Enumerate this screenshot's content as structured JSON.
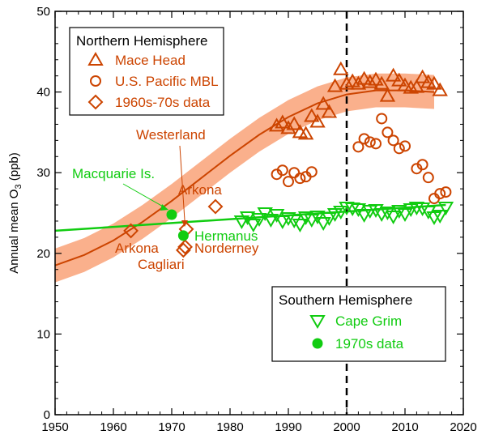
{
  "chart_data": {
    "type": "scatter",
    "xlabel": "",
    "ylabel_main": "Annual mean O",
    "ylabel_sub": "3",
    "ylabel_unit": " (ppb)",
    "xlim": [
      1950,
      2020
    ],
    "ylim": [
      0,
      50
    ],
    "xticks": [
      1950,
      1960,
      1970,
      1980,
      1990,
      2000,
      2010,
      2020
    ],
    "yticks": [
      0,
      10,
      20,
      30,
      40,
      50
    ],
    "vline_x": 2000,
    "colors": {
      "nh": "#cc4400",
      "nh_band": "#f9a77f",
      "sh": "#11cc11"
    },
    "legend_nh": {
      "title": "Northern Hemisphere",
      "items": [
        "Mace Head",
        "U.S. Pacific MBL",
        "1960s-70s data"
      ]
    },
    "legend_sh": {
      "title": "Southern Hemisphere",
      "items": [
        "Cape Grim",
        "1970s data"
      ]
    },
    "series": [
      {
        "name": "Mace Head",
        "marker": "triangle-up",
        "x": [
          1988,
          1989,
          1990,
          1991,
          1992,
          1993,
          1994,
          1995,
          1996,
          1997,
          1998,
          1999,
          2000,
          2001,
          2002,
          2003,
          2004,
          2005,
          2006,
          2007,
          2008,
          2009,
          2010,
          2011,
          2012,
          2013,
          2014,
          2015,
          2016
        ],
        "y": [
          35.8,
          36.2,
          35.5,
          36.0,
          35.0,
          34.8,
          37.0,
          36.3,
          38.5,
          37.5,
          40.7,
          42.8,
          41.0,
          41.3,
          41.0,
          41.6,
          41.2,
          41.5,
          41.0,
          39.5,
          42.0,
          41.4,
          40.8,
          40.5,
          40.6,
          41.8,
          41.2,
          41.0,
          40.2
        ]
      },
      {
        "name": "U.S. Pacific MBL",
        "marker": "circle",
        "x": [
          1988,
          1989,
          1990,
          1991,
          1992,
          1993,
          1994,
          2002,
          2003,
          2004,
          2005,
          2006,
          2007,
          2008,
          2009,
          2010,
          2012,
          2013,
          2014,
          2015,
          2016,
          2017
        ],
        "y": [
          29.8,
          30.3,
          28.9,
          30.0,
          29.3,
          29.5,
          30.1,
          33.2,
          34.2,
          33.8,
          33.6,
          36.7,
          35.0,
          34.0,
          33.0,
          33.3,
          30.5,
          31.0,
          29.4,
          26.8,
          27.4,
          27.6
        ]
      },
      {
        "name": "1960s-70s data",
        "marker": "diamond",
        "x": [
          1963,
          1977.5,
          1972.5,
          1972,
          1972.3
        ],
        "y": [
          22.8,
          25.8,
          23.0,
          20.4,
          20.8
        ]
      },
      {
        "name": "Cape Grim",
        "marker": "triangle-down",
        "x": [
          1982,
          1983,
          1984,
          1985,
          1986,
          1987,
          1988,
          1989,
          1990,
          1991,
          1992,
          1993,
          1994,
          1995,
          1996,
          1997,
          1998,
          1999,
          2000,
          2001,
          2002,
          2003,
          2004,
          2005,
          2006,
          2007,
          2008,
          2009,
          2010,
          2011,
          2012,
          2013,
          2014,
          2015,
          2016,
          2017
        ],
        "y": [
          24.0,
          24.5,
          23.6,
          24.3,
          25.0,
          24.2,
          24.8,
          24.0,
          24.4,
          24.1,
          23.6,
          24.5,
          24.2,
          24.6,
          23.8,
          24.4,
          24.9,
          25.2,
          25.7,
          25.6,
          25.5,
          24.8,
          25.3,
          25.4,
          24.9,
          25.1,
          24.6,
          25.3,
          24.9,
          25.5,
          25.7,
          25.6,
          25.2,
          24.5,
          24.7,
          25.7
        ]
      },
      {
        "name": "1970s data",
        "marker": "filled-circle",
        "x": [
          1970,
          1972
        ],
        "y": [
          24.8,
          22.2
        ]
      }
    ],
    "nh_fit": {
      "x": [
        1950,
        1955,
        1960,
        1965,
        1970,
        1975,
        1980,
        1985,
        1990,
        1995,
        2000,
        2005,
        2010,
        2015
      ],
      "y": [
        18.5,
        19.8,
        21.6,
        23.9,
        26.5,
        29.3,
        32.1,
        34.7,
        36.9,
        38.6,
        39.7,
        40.2,
        40.2,
        40.0
      ],
      "band": 2.1
    },
    "sh_fit": {
      "x": [
        1950,
        2017
      ],
      "y": [
        22.8,
        26.0
      ]
    },
    "annotations": [
      {
        "text": "Westerland",
        "color": "nh"
      },
      {
        "text": "Macquarie Is.",
        "color": "sh"
      },
      {
        "text": "Arkona",
        "color": "nh"
      },
      {
        "text": "Arkona",
        "color": "nh"
      },
      {
        "text": "Hermanus",
        "color": "sh"
      },
      {
        "text": "Norderney",
        "color": "nh"
      },
      {
        "text": "Cagliari",
        "color": "nh"
      }
    ]
  }
}
